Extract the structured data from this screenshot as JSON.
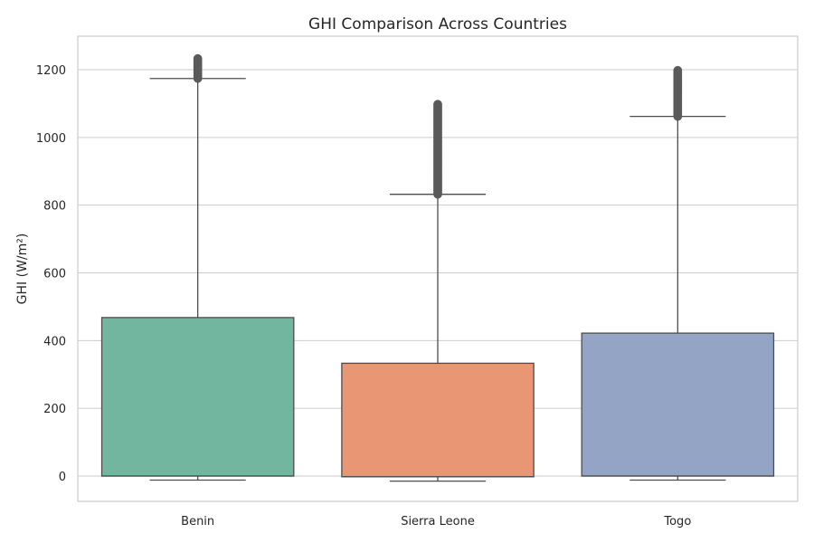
{
  "chart_data": {
    "type": "box",
    "title": "GHI Comparison Across Countries",
    "xlabel": "",
    "ylabel": "GHI (W/m²)",
    "ylim": [
      -80,
      1300
    ],
    "yticks": [
      0,
      200,
      400,
      600,
      800,
      1000,
      1200
    ],
    "grid": "horizontal",
    "categories": [
      "Benin",
      "Sierra Leone",
      "Togo"
    ],
    "series": [
      {
        "category": "Benin",
        "color": "#72b6a0",
        "whisker_low": -12,
        "q1": 0,
        "median": 0,
        "q3": 468,
        "whisker_high": 1174,
        "outliers_range": [
          1174,
          1233
        ]
      },
      {
        "category": "Sierra Leone",
        "color": "#e89674",
        "whisker_low": -15,
        "q1": -2,
        "median": -2,
        "q3": 333,
        "whisker_high": 832,
        "outliers_range": [
          832,
          1098
        ]
      },
      {
        "category": "Togo",
        "color": "#94a4c4",
        "whisker_low": -12,
        "q1": 0,
        "median": 0,
        "q3": 422,
        "whisker_high": 1062,
        "outliers_range": [
          1062,
          1198
        ]
      }
    ]
  }
}
